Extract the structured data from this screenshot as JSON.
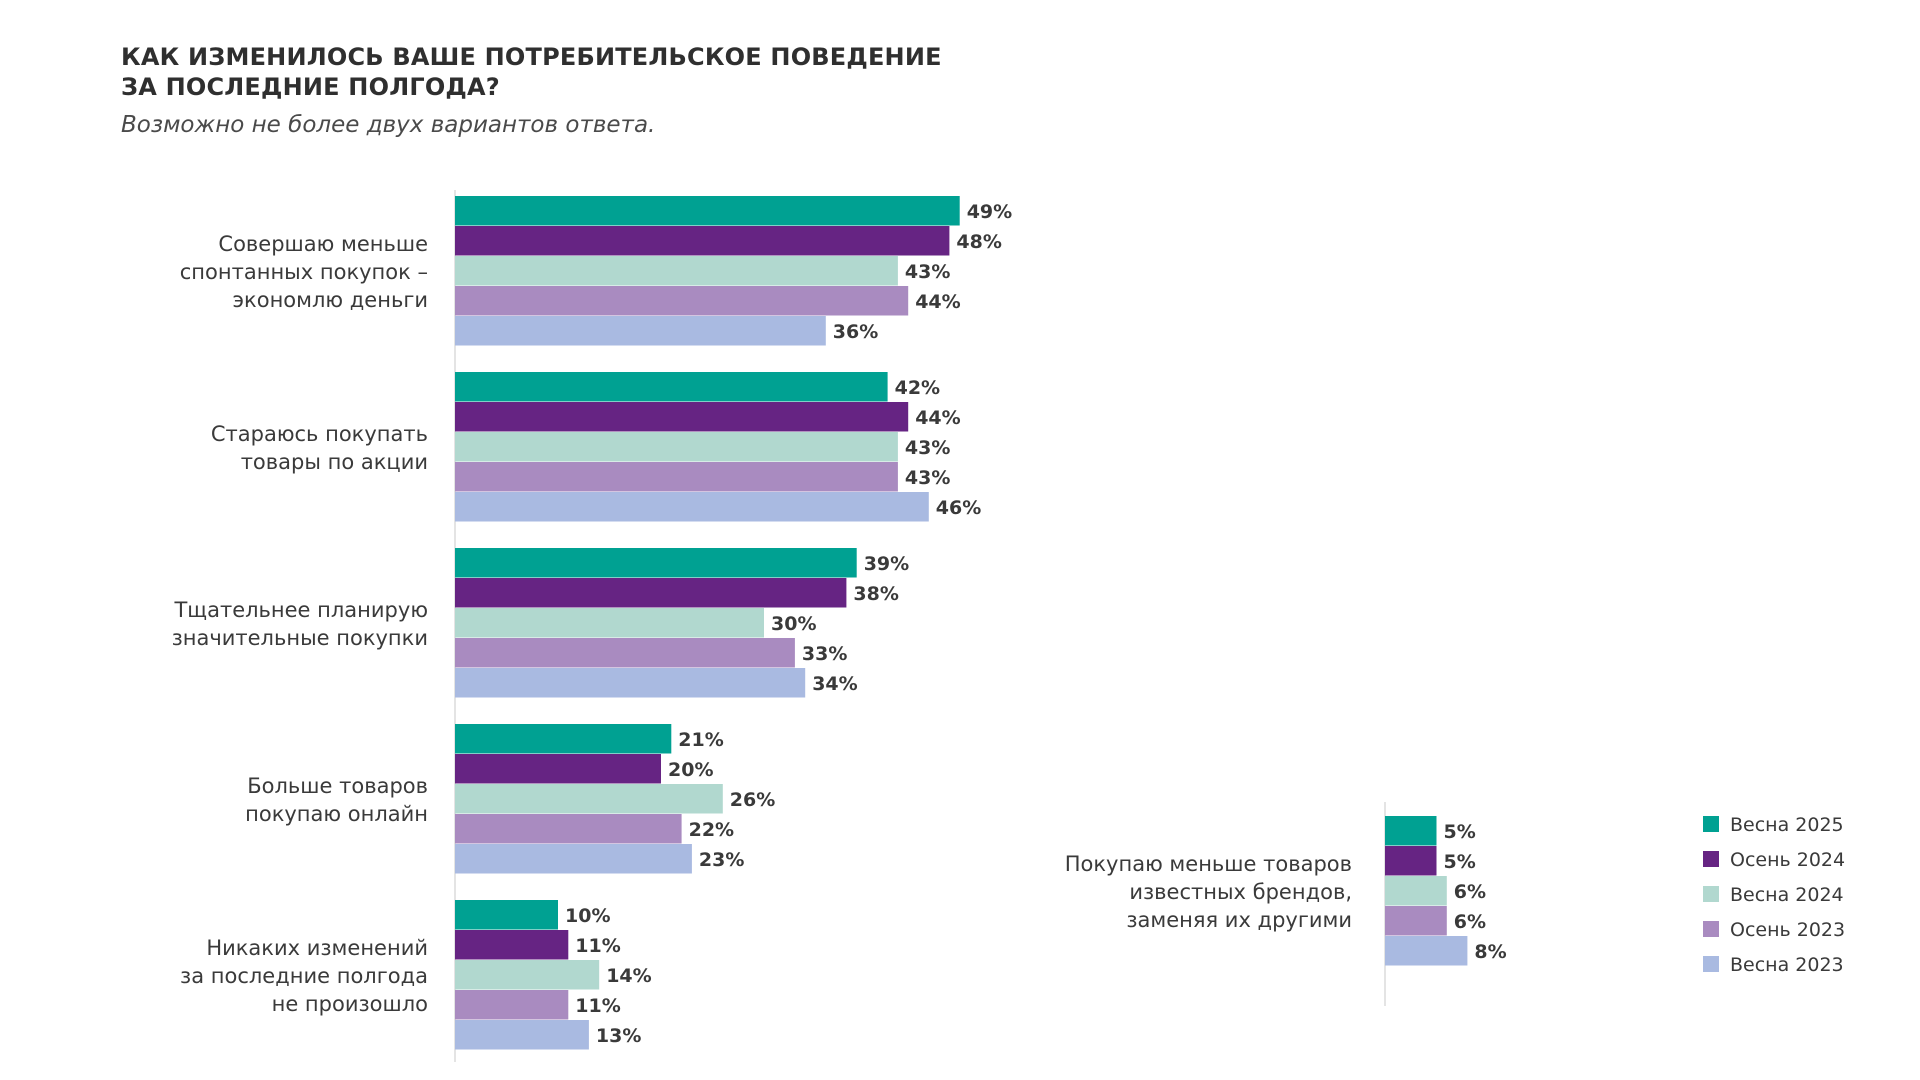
{
  "title_line1": "КАК ИЗМЕНИЛОСЬ ВАШЕ ПОТРЕБИТЕЛЬСКОЕ ПОВЕДЕНИЕ",
  "title_line2": "ЗА ПОСЛЕДНИЕ ПОЛГОДА?",
  "subtitle": "Возможно не более двух вариантов ответа.",
  "chart_data": {
    "type": "bar",
    "orientation": "horizontal",
    "categories": [
      [
        "Совершаю меньше",
        "спонтанных покупок –",
        "экономлю деньги"
      ],
      [
        "Стараюсь покупать",
        "товары по акции"
      ],
      [
        "Тщательнее планирую",
        "значительные покупки"
      ],
      [
        "Больше товаров",
        "покупаю онлайн"
      ],
      [
        "Никаких изменений",
        "за последние полгода",
        "не произошло"
      ],
      [
        "Покупаю меньше товаров",
        "известных брендов,",
        "заменяя их другими"
      ]
    ],
    "series": [
      {
        "name": "Весна 2025",
        "color": "#00a192",
        "values": [
          49,
          42,
          39,
          21,
          10,
          5
        ]
      },
      {
        "name": "Осень 2024",
        "color": "#662483",
        "values": [
          48,
          44,
          38,
          20,
          11,
          5
        ]
      },
      {
        "name": "Весна 2024",
        "color": "#b1d8cf",
        "values": [
          43,
          43,
          30,
          26,
          14,
          6
        ]
      },
      {
        "name": "Осень 2023",
        "color": "#a98bc0",
        "values": [
          44,
          43,
          33,
          22,
          11,
          6
        ]
      },
      {
        "name": "Весна 2023",
        "color": "#a9bae1",
        "values": [
          36,
          46,
          34,
          23,
          13,
          8
        ]
      }
    ],
    "value_suffix": "%",
    "legend_position": "right",
    "grid": false
  }
}
